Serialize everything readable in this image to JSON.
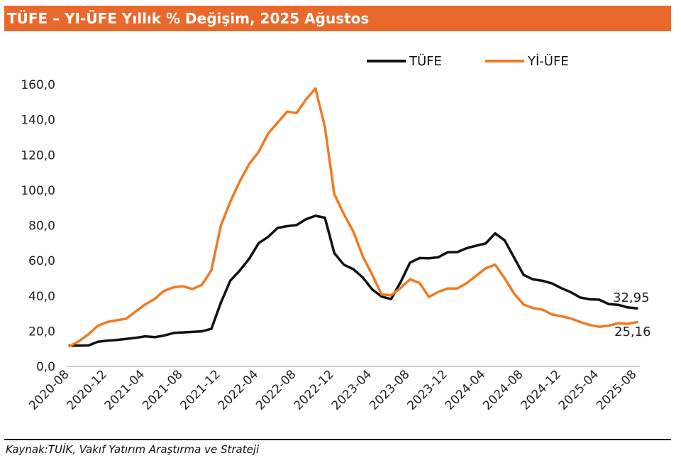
{
  "header": {
    "title": "TÜFE – YI-ÜFE Yıllık % Değişim, 2025 Ağustos"
  },
  "footer": {
    "source": "Kaynak:TUİK, Vakıf Yatırım Araştırma ve Strateji"
  },
  "colors": {
    "title_bg": "#e8692b",
    "tufe": "#111111",
    "yiufe": "#f07a23"
  },
  "chart_data": {
    "type": "line",
    "title": "TÜFE – YI-ÜFE Yıllık % Değişim, 2025 Ağustos",
    "xlabel": "",
    "ylabel": "",
    "ylim": [
      0,
      160
    ],
    "yticks": [
      "0,0",
      "20,0",
      "40,0",
      "60,0",
      "80,0",
      "100,0",
      "120,0",
      "140,0",
      "160,0"
    ],
    "yticks_values": [
      0,
      20,
      40,
      60,
      80,
      100,
      120,
      140,
      160
    ],
    "xticks": [
      "2020-08",
      "2020-12",
      "2021-04",
      "2021-08",
      "2021-12",
      "2022-04",
      "2022-08",
      "2022-12",
      "2023-04",
      "2023-08",
      "2023-12",
      "2024-04",
      "2024-08",
      "2024-12",
      "2025-04",
      "2025-08"
    ],
    "grid": false,
    "legend": "top-right",
    "x": [
      "2020-08",
      "2020-09",
      "2020-10",
      "2020-11",
      "2020-12",
      "2021-01",
      "2021-02",
      "2021-03",
      "2021-04",
      "2021-05",
      "2021-06",
      "2021-07",
      "2021-08",
      "2021-09",
      "2021-10",
      "2021-11",
      "2021-12",
      "2022-01",
      "2022-02",
      "2022-03",
      "2022-04",
      "2022-05",
      "2022-06",
      "2022-07",
      "2022-08",
      "2022-09",
      "2022-10",
      "2022-11",
      "2022-12",
      "2023-01",
      "2023-02",
      "2023-03",
      "2023-04",
      "2023-05",
      "2023-06",
      "2023-07",
      "2023-08",
      "2023-09",
      "2023-10",
      "2023-11",
      "2023-12",
      "2024-01",
      "2024-02",
      "2024-03",
      "2024-04",
      "2024-05",
      "2024-06",
      "2024-07",
      "2024-08",
      "2024-09",
      "2024-10",
      "2024-11",
      "2024-12",
      "2025-01",
      "2025-02",
      "2025-03",
      "2025-04",
      "2025-05",
      "2025-06",
      "2025-07",
      "2025-08"
    ],
    "series": [
      {
        "name": "TÜFE",
        "color": "#111111",
        "values": [
          11.8,
          11.8,
          11.9,
          14.0,
          14.6,
          15.0,
          15.6,
          16.2,
          17.1,
          16.6,
          17.5,
          19.0,
          19.3,
          19.6,
          19.9,
          21.3,
          36.1,
          48.7,
          54.4,
          61.1,
          70.0,
          73.5,
          78.6,
          79.6,
          80.2,
          83.5,
          85.5,
          84.4,
          64.3,
          57.7,
          55.2,
          50.5,
          43.7,
          39.6,
          38.2,
          47.8,
          58.9,
          61.5,
          61.4,
          62.0,
          64.8,
          64.9,
          67.1,
          68.5,
          69.8,
          75.5,
          71.6,
          61.8,
          52.0,
          49.4,
          48.6,
          47.1,
          44.4,
          42.1,
          39.1,
          38.1,
          37.9,
          35.4,
          35.0,
          33.5,
          32.95
        ]
      },
      {
        "name": "Yİ-ÜFE",
        "color": "#f07a23",
        "values": [
          11.5,
          14.3,
          18.2,
          23.1,
          25.2,
          26.2,
          27.1,
          31.2,
          35.2,
          38.3,
          42.9,
          44.9,
          45.5,
          43.9,
          46.3,
          54.6,
          79.9,
          93.5,
          105.0,
          114.9,
          121.8,
          132.2,
          138.3,
          144.6,
          143.8,
          151.5,
          157.7,
          136.0,
          97.7,
          86.5,
          76.6,
          62.5,
          52.1,
          40.8,
          40.4,
          44.5,
          49.4,
          47.4,
          39.4,
          42.3,
          44.2,
          44.2,
          47.3,
          51.5,
          55.7,
          57.7,
          50.1,
          41.4,
          35.2,
          33.1,
          32.2,
          29.5,
          28.5,
          27.2,
          25.2,
          23.5,
          22.5,
          23.1,
          24.5,
          24.2,
          25.16
        ]
      }
    ],
    "end_labels": {
      "TÜFE": "32,95",
      "Yİ-ÜFE": "25,16"
    }
  }
}
